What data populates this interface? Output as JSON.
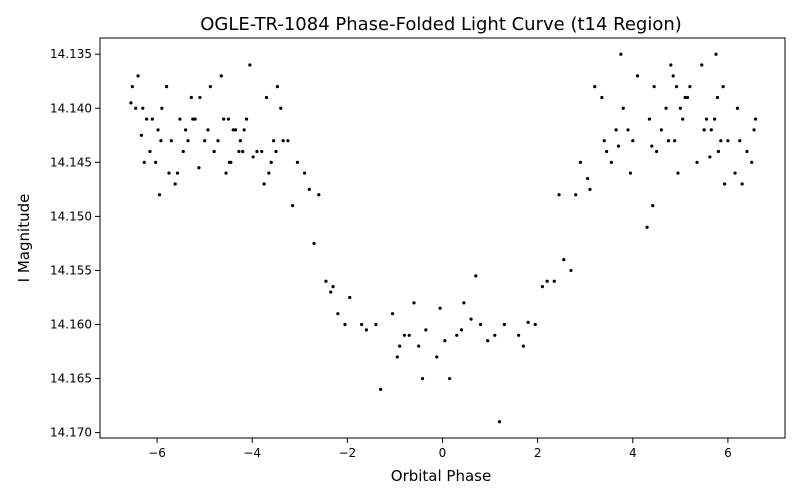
{
  "chart_data": {
    "type": "scatter",
    "title": "OGLE-TR-1084 Phase-Folded Light Curve (t14 Region)",
    "xlabel": "Orbital Phase",
    "ylabel": "I Magnitude",
    "xlim": [
      -7.2,
      7.2
    ],
    "ylim": [
      14.1705,
      14.1335
    ],
    "y_inverted": true,
    "grid": false,
    "marker_color": "#000000",
    "x_ticks": [
      -6,
      -4,
      -2,
      0,
      2,
      4,
      6
    ],
    "x_tick_labels": [
      "−6",
      "−4",
      "−2",
      "0",
      "2",
      "4",
      "6"
    ],
    "y_ticks": [
      14.135,
      14.14,
      14.145,
      14.15,
      14.155,
      14.16,
      14.165,
      14.17
    ],
    "y_tick_labels": [
      "14.135",
      "14.140",
      "14.145",
      "14.150",
      "14.155",
      "14.160",
      "14.165",
      "14.170"
    ],
    "points": [
      [
        -6.55,
        14.1395
      ],
      [
        -6.52,
        14.138
      ],
      [
        -6.45,
        14.14
      ],
      [
        -6.4,
        14.137
      ],
      [
        -6.33,
        14.1425
      ],
      [
        -6.3,
        14.14
      ],
      [
        -6.27,
        14.145
      ],
      [
        -6.22,
        14.141
      ],
      [
        -6.15,
        14.144
      ],
      [
        -6.1,
        14.141
      ],
      [
        -6.03,
        14.145
      ],
      [
        -5.98,
        14.142
      ],
      [
        -5.95,
        14.148
      ],
      [
        -5.92,
        14.143
      ],
      [
        -5.9,
        14.14
      ],
      [
        -5.8,
        14.138
      ],
      [
        -5.75,
        14.146
      ],
      [
        -5.7,
        14.143
      ],
      [
        -5.62,
        14.147
      ],
      [
        -5.57,
        14.146
      ],
      [
        -5.52,
        14.141
      ],
      [
        -5.45,
        14.144
      ],
      [
        -5.4,
        14.142
      ],
      [
        -5.35,
        14.143
      ],
      [
        -5.28,
        14.139
      ],
      [
        -5.25,
        14.141
      ],
      [
        -5.2,
        14.141
      ],
      [
        -5.12,
        14.1455
      ],
      [
        -5.1,
        14.139
      ],
      [
        -5.0,
        14.143
      ],
      [
        -4.93,
        14.142
      ],
      [
        -4.88,
        14.138
      ],
      [
        -4.8,
        14.144
      ],
      [
        -4.72,
        14.143
      ],
      [
        -4.65,
        14.137
      ],
      [
        -4.6,
        14.141
      ],
      [
        -4.55,
        14.146
      ],
      [
        -4.5,
        14.141
      ],
      [
        -4.48,
        14.145
      ],
      [
        -4.45,
        14.145
      ],
      [
        -4.4,
        14.142
      ],
      [
        -4.35,
        14.142
      ],
      [
        -4.28,
        14.144
      ],
      [
        -4.25,
        14.143
      ],
      [
        -4.2,
        14.144
      ],
      [
        -4.17,
        14.142
      ],
      [
        -4.12,
        14.141
      ],
      [
        -4.05,
        14.136
      ],
      [
        -3.98,
        14.1445
      ],
      [
        -3.9,
        14.144
      ],
      [
        -3.8,
        14.144
      ],
      [
        -3.75,
        14.147
      ],
      [
        -3.7,
        14.139
      ],
      [
        -3.65,
        14.146
      ],
      [
        -3.6,
        14.145
      ],
      [
        -3.55,
        14.143
      ],
      [
        -3.5,
        14.144
      ],
      [
        -3.47,
        14.138
      ],
      [
        -3.4,
        14.14
      ],
      [
        -3.35,
        14.143
      ],
      [
        -3.25,
        14.143
      ],
      [
        -3.15,
        14.149
      ],
      [
        -3.05,
        14.145
      ],
      [
        -2.9,
        14.146
      ],
      [
        -2.8,
        14.1475
      ],
      [
        -2.7,
        14.1525
      ],
      [
        -2.6,
        14.148
      ],
      [
        -2.45,
        14.156
      ],
      [
        -2.35,
        14.157
      ],
      [
        -2.3,
        14.1565
      ],
      [
        -2.2,
        14.159
      ],
      [
        -2.05,
        14.16
      ],
      [
        -1.95,
        14.1575
      ],
      [
        -1.7,
        14.16
      ],
      [
        -1.6,
        14.1605
      ],
      [
        -1.4,
        14.16
      ],
      [
        -1.3,
        14.166
      ],
      [
        -1.05,
        14.159
      ],
      [
        -0.95,
        14.163
      ],
      [
        -0.9,
        14.162
      ],
      [
        -0.8,
        14.161
      ],
      [
        -0.7,
        14.161
      ],
      [
        -0.6,
        14.158
      ],
      [
        -0.5,
        14.162
      ],
      [
        -0.42,
        14.165
      ],
      [
        -0.35,
        14.1605
      ],
      [
        -0.12,
        14.163
      ],
      [
        -0.05,
        14.1585
      ],
      [
        0.05,
        14.1615
      ],
      [
        0.15,
        14.165
      ],
      [
        0.3,
        14.161
      ],
      [
        0.4,
        14.1605
      ],
      [
        0.45,
        14.158
      ],
      [
        0.6,
        14.1595
      ],
      [
        0.7,
        14.1555
      ],
      [
        0.8,
        14.16
      ],
      [
        0.95,
        14.1615
      ],
      [
        1.1,
        14.161
      ],
      [
        1.2,
        14.169
      ],
      [
        1.3,
        14.16
      ],
      [
        1.6,
        14.161
      ],
      [
        1.7,
        14.162
      ],
      [
        1.8,
        14.1598
      ],
      [
        1.95,
        14.16
      ],
      [
        2.1,
        14.1565
      ],
      [
        2.2,
        14.156
      ],
      [
        2.35,
        14.156
      ],
      [
        2.45,
        14.148
      ],
      [
        2.55,
        14.154
      ],
      [
        2.7,
        14.155
      ],
      [
        2.8,
        14.148
      ],
      [
        2.9,
        14.145
      ],
      [
        3.05,
        14.1465
      ],
      [
        3.1,
        14.1475
      ],
      [
        3.2,
        14.138
      ],
      [
        3.35,
        14.139
      ],
      [
        3.4,
        14.143
      ],
      [
        3.45,
        14.144
      ],
      [
        3.55,
        14.145
      ],
      [
        3.65,
        14.142
      ],
      [
        3.7,
        14.1435
      ],
      [
        3.75,
        14.135
      ],
      [
        3.8,
        14.14
      ],
      [
        3.9,
        14.142
      ],
      [
        3.95,
        14.146
      ],
      [
        4.0,
        14.143
      ],
      [
        4.1,
        14.137
      ],
      [
        4.3,
        14.151
      ],
      [
        4.35,
        14.141
      ],
      [
        4.4,
        14.1435
      ],
      [
        4.42,
        14.149
      ],
      [
        4.45,
        14.138
      ],
      [
        4.5,
        14.144
      ],
      [
        4.6,
        14.142
      ],
      [
        4.7,
        14.14
      ],
      [
        4.75,
        14.143
      ],
      [
        4.8,
        14.136
      ],
      [
        4.85,
        14.137
      ],
      [
        4.88,
        14.143
      ],
      [
        4.92,
        14.138
      ],
      [
        4.95,
        14.146
      ],
      [
        5.0,
        14.14
      ],
      [
        5.05,
        14.141
      ],
      [
        5.1,
        14.139
      ],
      [
        5.15,
        14.139
      ],
      [
        5.2,
        14.138
      ],
      [
        5.35,
        14.145
      ],
      [
        5.45,
        14.136
      ],
      [
        5.5,
        14.142
      ],
      [
        5.55,
        14.141
      ],
      [
        5.62,
        14.1445
      ],
      [
        5.65,
        14.142
      ],
      [
        5.72,
        14.141
      ],
      [
        5.75,
        14.135
      ],
      [
        5.78,
        14.139
      ],
      [
        5.8,
        14.144
      ],
      [
        5.85,
        14.143
      ],
      [
        5.9,
        14.138
      ],
      [
        5.93,
        14.147
      ],
      [
        6.0,
        14.143
      ],
      [
        6.15,
        14.146
      ],
      [
        6.2,
        14.14
      ],
      [
        6.25,
        14.143
      ],
      [
        6.3,
        14.147
      ],
      [
        6.4,
        14.144
      ],
      [
        6.5,
        14.145
      ],
      [
        6.55,
        14.142
      ],
      [
        6.58,
        14.141
      ]
    ]
  }
}
